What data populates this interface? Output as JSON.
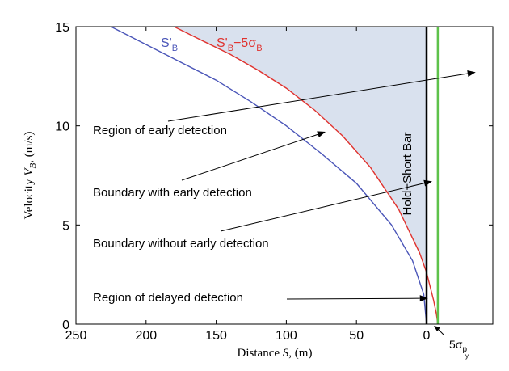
{
  "chart_data": {
    "type": "line",
    "xlabel": "Distance S, (m)",
    "ylabel": "Velocity V_B, (m/s)",
    "xlim": [
      250,
      0
    ],
    "ylim": [
      0,
      15
    ],
    "x_reversed": true,
    "xticks": [
      "250",
      "200",
      "150",
      "100",
      "50",
      "0"
    ],
    "xtick_values": [
      250,
      200,
      150,
      100,
      50,
      0
    ],
    "yticks": [
      "0",
      "5",
      "10",
      "15"
    ],
    "ytick_values": [
      0,
      5,
      10,
      15
    ],
    "grid": false,
    "series": [
      {
        "name": "S'_B",
        "color": "#4a55b8",
        "x": [
          225,
          200,
          175,
          150,
          125,
          100,
          75,
          50,
          25,
          10,
          2,
          0
        ],
        "y": [
          15.0,
          14.1,
          13.2,
          12.3,
          11.2,
          10.0,
          8.6,
          7.1,
          5.0,
          3.2,
          1.5,
          0
        ]
      },
      {
        "name": "S'_B−5σ_B",
        "color": "#e0322e",
        "x": [
          180,
          160,
          140,
          120,
          100,
          80,
          60,
          40,
          20,
          5,
          0,
          -5,
          -7,
          -8
        ],
        "y": [
          15.0,
          14.3,
          13.6,
          12.8,
          11.9,
          10.8,
          9.5,
          7.9,
          5.8,
          3.6,
          2.6,
          1.2,
          0.5,
          0
        ]
      }
    ],
    "hold_short_bar": {
      "label": "Hold−Short Bar",
      "x": 0,
      "color": "#000000"
    },
    "green_line": {
      "x": -8,
      "color": "#5ec24a"
    },
    "shaded_region_color": "#d9e1ee",
    "annotations": [
      {
        "text": "Region of early detection",
        "target": [
          -35,
          12.7
        ]
      },
      {
        "text": "Boundary with early detection",
        "target": [
          72,
          9.7
        ]
      },
      {
        "text": "Boundary without early detection",
        "target": [
          -4,
          7.2
        ]
      },
      {
        "text": "Region of delayed detection",
        "target": [
          -1,
          1.3
        ]
      }
    ],
    "sigma_label": {
      "text": "5σ",
      "sub": "p",
      "subsub": "y"
    }
  }
}
